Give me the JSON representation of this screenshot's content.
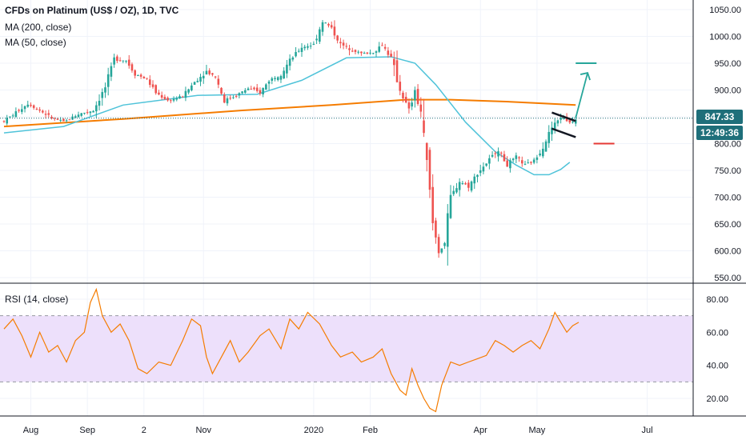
{
  "header": {
    "title": "CFDs on Platinum (US$ / OZ), 1D, TVC",
    "ma200_label": "MA (200, close)",
    "ma50_label": "MA (50, close)",
    "rsi_label": "RSI (14, close)"
  },
  "badges": {
    "last_price": "847.33",
    "countdown": "12:49:36"
  },
  "colors": {
    "up": "#26a69a",
    "down": "#ef5350",
    "ma200": "#f57c00",
    "ma50": "#4fc3d9",
    "rsi_line": "#f57c00",
    "rsi_band": "#ede0fb",
    "pattern": "#131722",
    "target_line": "#26a69a",
    "stop_line": "#e53935",
    "price_line": "#1f6f7a"
  },
  "chart_data": [
    {
      "type": "candlestick",
      "title": "CFDs on Platinum (US$ / OZ), 1D, TVC",
      "x_tick_labels": [
        "Aug",
        "Sep",
        "2",
        "Nov",
        "2020",
        "Feb",
        "Apr",
        "May",
        "Jul"
      ],
      "y_tick_labels": [
        "1050.00",
        "1000.00",
        "950.00",
        "900.00",
        "850.00",
        "800.00",
        "750.00",
        "700.00",
        "650.00",
        "600.00",
        "550.00"
      ],
      "ylim": [
        540,
        1060
      ],
      "last_price": 847.33,
      "close_path": [
        {
          "t": 0,
          "v": 842
        },
        {
          "t": 4,
          "v": 858
        },
        {
          "t": 8,
          "v": 875
        },
        {
          "t": 12,
          "v": 862
        },
        {
          "t": 16,
          "v": 848
        },
        {
          "t": 20,
          "v": 840
        },
        {
          "t": 25,
          "v": 855
        },
        {
          "t": 30,
          "v": 862
        },
        {
          "t": 34,
          "v": 905
        },
        {
          "t": 37,
          "v": 958
        },
        {
          "t": 41,
          "v": 955
        },
        {
          "t": 44,
          "v": 930
        },
        {
          "t": 48,
          "v": 920
        },
        {
          "t": 51,
          "v": 895
        },
        {
          "t": 55,
          "v": 880
        },
        {
          "t": 60,
          "v": 888
        },
        {
          "t": 64,
          "v": 915
        },
        {
          "t": 68,
          "v": 935
        },
        {
          "t": 71,
          "v": 925
        },
        {
          "t": 74,
          "v": 880
        },
        {
          "t": 78,
          "v": 890
        },
        {
          "t": 82,
          "v": 903
        },
        {
          "t": 86,
          "v": 895
        },
        {
          "t": 89,
          "v": 918
        },
        {
          "t": 93,
          "v": 930
        },
        {
          "t": 96,
          "v": 955
        },
        {
          "t": 100,
          "v": 980
        },
        {
          "t": 104,
          "v": 985
        },
        {
          "t": 107,
          "v": 1030
        },
        {
          "t": 110,
          "v": 1015
        },
        {
          "t": 113,
          "v": 985
        },
        {
          "t": 117,
          "v": 975
        },
        {
          "t": 120,
          "v": 968
        },
        {
          "t": 124,
          "v": 970
        },
        {
          "t": 127,
          "v": 985
        },
        {
          "t": 130,
          "v": 960
        },
        {
          "t": 133,
          "v": 900
        },
        {
          "t": 136,
          "v": 862
        },
        {
          "t": 138,
          "v": 895
        },
        {
          "t": 140,
          "v": 860
        },
        {
          "t": 142,
          "v": 760
        },
        {
          "t": 144,
          "v": 650
        },
        {
          "t": 146,
          "v": 600
        },
        {
          "t": 148,
          "v": 615
        },
        {
          "t": 150,
          "v": 700
        },
        {
          "t": 153,
          "v": 730
        },
        {
          "t": 156,
          "v": 720
        },
        {
          "t": 159,
          "v": 745
        },
        {
          "t": 163,
          "v": 770
        },
        {
          "t": 166,
          "v": 790
        },
        {
          "t": 169,
          "v": 760
        },
        {
          "t": 172,
          "v": 775
        },
        {
          "t": 175,
          "v": 760
        },
        {
          "t": 178,
          "v": 768
        },
        {
          "t": 181,
          "v": 795
        },
        {
          "t": 184,
          "v": 830
        },
        {
          "t": 187,
          "v": 850
        },
        {
          "t": 190,
          "v": 840
        },
        {
          "t": 192,
          "v": 847
        }
      ],
      "ma200": [
        {
          "t": 0,
          "v": 832
        },
        {
          "t": 40,
          "v": 846
        },
        {
          "t": 80,
          "v": 862
        },
        {
          "t": 110,
          "v": 872
        },
        {
          "t": 135,
          "v": 882
        },
        {
          "t": 150,
          "v": 882
        },
        {
          "t": 170,
          "v": 878
        },
        {
          "t": 192,
          "v": 872
        }
      ],
      "ma50": [
        {
          "t": 0,
          "v": 820
        },
        {
          "t": 20,
          "v": 832
        },
        {
          "t": 40,
          "v": 872
        },
        {
          "t": 65,
          "v": 890
        },
        {
          "t": 85,
          "v": 892
        },
        {
          "t": 100,
          "v": 918
        },
        {
          "t": 115,
          "v": 960
        },
        {
          "t": 130,
          "v": 962
        },
        {
          "t": 138,
          "v": 950
        },
        {
          "t": 145,
          "v": 910
        },
        {
          "t": 155,
          "v": 840
        },
        {
          "t": 165,
          "v": 785
        },
        {
          "t": 172,
          "v": 760
        },
        {
          "t": 178,
          "v": 742
        },
        {
          "t": 183,
          "v": 742
        },
        {
          "t": 187,
          "v": 752
        },
        {
          "t": 190,
          "v": 765
        }
      ],
      "annotations": {
        "flag_upper": [
          {
            "t": 184,
            "v": 858
          },
          {
            "t": 192,
            "v": 842
          }
        ],
        "flag_lower": [
          {
            "t": 184,
            "v": 828
          },
          {
            "t": 192,
            "v": 812
          }
        ],
        "target_arrow": [
          {
            "t": 192,
            "v": 848
          },
          {
            "t": 196,
            "v": 932
          }
        ],
        "target_level": {
          "t0": 192,
          "t1": 199,
          "v": 950
        },
        "stop_level": {
          "t0": 198,
          "t1": 205,
          "v": 800
        }
      }
    },
    {
      "type": "line",
      "title": "RSI (14, close)",
      "y_tick_labels": [
        "80.00",
        "60.00",
        "40.00",
        "20.00"
      ],
      "ylim": [
        10,
        88
      ],
      "band": [
        30,
        70
      ],
      "series": [
        {
          "values": [
            {
              "t": 0,
              "v": 62
            },
            {
              "t": 3,
              "v": 68
            },
            {
              "t": 6,
              "v": 58
            },
            {
              "t": 9,
              "v": 45
            },
            {
              "t": 12,
              "v": 60
            },
            {
              "t": 15,
              "v": 48
            },
            {
              "t": 18,
              "v": 52
            },
            {
              "t": 21,
              "v": 42
            },
            {
              "t": 24,
              "v": 55
            },
            {
              "t": 27,
              "v": 60
            },
            {
              "t": 29,
              "v": 78
            },
            {
              "t": 31,
              "v": 86
            },
            {
              "t": 33,
              "v": 70
            },
            {
              "t": 36,
              "v": 60
            },
            {
              "t": 39,
              "v": 65
            },
            {
              "t": 42,
              "v": 55
            },
            {
              "t": 45,
              "v": 38
            },
            {
              "t": 48,
              "v": 35
            },
            {
              "t": 52,
              "v": 42
            },
            {
              "t": 56,
              "v": 40
            },
            {
              "t": 60,
              "v": 55
            },
            {
              "t": 63,
              "v": 68
            },
            {
              "t": 66,
              "v": 64
            },
            {
              "t": 68,
              "v": 45
            },
            {
              "t": 70,
              "v": 35
            },
            {
              "t": 73,
              "v": 45
            },
            {
              "t": 76,
              "v": 55
            },
            {
              "t": 79,
              "v": 42
            },
            {
              "t": 82,
              "v": 48
            },
            {
              "t": 86,
              "v": 58
            },
            {
              "t": 89,
              "v": 62
            },
            {
              "t": 93,
              "v": 50
            },
            {
              "t": 96,
              "v": 68
            },
            {
              "t": 99,
              "v": 62
            },
            {
              "t": 102,
              "v": 72
            },
            {
              "t": 106,
              "v": 65
            },
            {
              "t": 110,
              "v": 52
            },
            {
              "t": 113,
              "v": 45
            },
            {
              "t": 117,
              "v": 48
            },
            {
              "t": 120,
              "v": 42
            },
            {
              "t": 124,
              "v": 45
            },
            {
              "t": 127,
              "v": 50
            },
            {
              "t": 130,
              "v": 35
            },
            {
              "t": 133,
              "v": 25
            },
            {
              "t": 135,
              "v": 22
            },
            {
              "t": 137,
              "v": 38
            },
            {
              "t": 139,
              "v": 28
            },
            {
              "t": 141,
              "v": 20
            },
            {
              "t": 143,
              "v": 14
            },
            {
              "t": 145,
              "v": 12
            },
            {
              "t": 147,
              "v": 28
            },
            {
              "t": 150,
              "v": 42
            },
            {
              "t": 153,
              "v": 40
            },
            {
              "t": 156,
              "v": 42
            },
            {
              "t": 159,
              "v": 44
            },
            {
              "t": 162,
              "v": 46
            },
            {
              "t": 165,
              "v": 55
            },
            {
              "t": 168,
              "v": 52
            },
            {
              "t": 171,
              "v": 48
            },
            {
              "t": 174,
              "v": 52
            },
            {
              "t": 177,
              "v": 55
            },
            {
              "t": 180,
              "v": 50
            },
            {
              "t": 183,
              "v": 62
            },
            {
              "t": 185,
              "v": 72
            },
            {
              "t": 187,
              "v": 66
            },
            {
              "t": 189,
              "v": 60
            },
            {
              "t": 191,
              "v": 64
            },
            {
              "t": 193,
              "v": 66
            }
          ]
        }
      ]
    }
  ]
}
